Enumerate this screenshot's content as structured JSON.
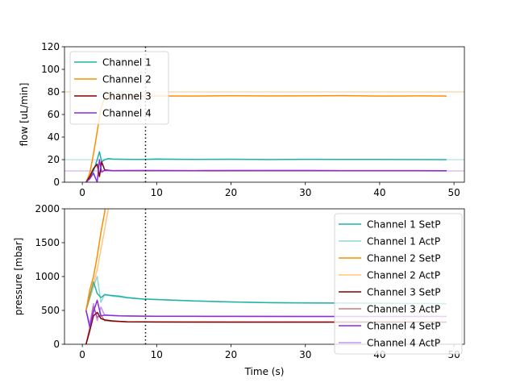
{
  "chart_data": [
    {
      "type": "line",
      "ylabel": "flow [uL/min]",
      "xlim": [
        -2.4,
        51.4
      ],
      "ylim": [
        0,
        120
      ],
      "xticks": [
        0,
        10,
        20,
        30,
        40,
        50
      ],
      "yticks": [
        0,
        20,
        40,
        60,
        80,
        100,
        120
      ],
      "legend_loc": "top-left",
      "marker_x": 8.5,
      "reference_lines": [
        {
          "y": 80,
          "color": "#f5c890"
        },
        {
          "y": 20,
          "color": "#a6dcd8"
        },
        {
          "y": 10,
          "color": "#c9a2e0"
        }
      ],
      "series": [
        {
          "name": "Channel 1",
          "color": "#20b2aa",
          "x": [
            0.5,
            1.0,
            1.5,
            2.0,
            2.3,
            2.6,
            3.0,
            3.5,
            4,
            6,
            8,
            10,
            15,
            20,
            25,
            30,
            35,
            40,
            45,
            49
          ],
          "y": [
            0,
            4,
            10,
            20,
            27,
            18,
            20,
            21,
            20.5,
            20.3,
            20.2,
            20.5,
            20.2,
            20.4,
            20.1,
            20.3,
            20.2,
            20.2,
            20.1,
            20
          ]
        },
        {
          "name": "Channel 2",
          "color": "#ff8c00",
          "x": [
            0.5,
            1.0,
            1.5,
            2.0,
            2.5,
            3.0,
            3.5,
            4,
            6,
            8,
            10,
            15,
            20,
            25,
            30,
            35,
            40,
            45,
            49
          ],
          "y": [
            0,
            8,
            25,
            45,
            65,
            75,
            77,
            76,
            76,
            76.2,
            76.4,
            76.3,
            76.6,
            76.4,
            76.5,
            76.7,
            76.3,
            76.5,
            76.3
          ]
        },
        {
          "name": "Channel 3",
          "color": "#800000",
          "x": [
            0.5,
            1.0,
            1.5,
            2.0,
            2.3,
            2.6,
            3.0,
            4,
            8,
            15,
            25,
            35,
            45,
            49
          ],
          "y": [
            0,
            5,
            12,
            16,
            5,
            18,
            11,
            10.2,
            10.3,
            10.2,
            10.3,
            10.2,
            10.2,
            10.1
          ]
        },
        {
          "name": "Channel 4",
          "color": "#8a2be2",
          "x": [
            0.5,
            1.0,
            1.5,
            2.0,
            2.3,
            2.6,
            3.0,
            4,
            8,
            15,
            25,
            35,
            45,
            49
          ],
          "y": [
            0,
            3,
            8,
            0,
            20,
            9,
            10.5,
            10.3,
            10.4,
            10.3,
            10.4,
            10.3,
            10.3,
            10.2
          ]
        }
      ]
    },
    {
      "type": "line",
      "xlabel": "Time (s)",
      "ylabel": "pressure [mbar]",
      "xlim": [
        -2.4,
        51.4
      ],
      "ylim": [
        0,
        2000
      ],
      "xticks": [
        0,
        10,
        20,
        30,
        40,
        50
      ],
      "yticks": [
        0,
        500,
        1000,
        1500,
        2000
      ],
      "legend_loc": "top-right",
      "marker_x": 8.5,
      "series": [
        {
          "name": "Channel 1 SetP",
          "color": "#20b2aa",
          "alpha": 1,
          "x": [
            0.5,
            1.5,
            2.0,
            2.5,
            3.0,
            4,
            5,
            6,
            8,
            10,
            15,
            20,
            25,
            30,
            35,
            40,
            45,
            49
          ],
          "y": [
            500,
            920,
            750,
            690,
            730,
            720,
            710,
            690,
            670,
            660,
            640,
            625,
            615,
            610,
            608,
            605,
            603,
            600
          ]
        },
        {
          "name": "Channel 1 ActP",
          "color": "#20b2aa",
          "alpha": 0.5,
          "x": [
            0.5,
            1.5,
            2.0,
            2.5,
            3.0,
            4,
            5,
            6,
            8,
            10,
            15,
            20,
            25,
            30,
            35,
            40,
            45,
            49
          ],
          "y": [
            500,
            850,
            1000,
            620,
            740,
            710,
            700,
            685,
            668,
            660,
            640,
            625,
            615,
            610,
            608,
            605,
            603,
            600
          ]
        },
        {
          "name": "Channel 2 SetP",
          "color": "#ff8c00",
          "alpha": 1,
          "x": [
            0.5,
            1.0,
            1.5,
            2.0,
            2.5,
            3.0,
            3.6
          ],
          "y": [
            500,
            800,
            1000,
            1300,
            1650,
            1950,
            2400
          ]
        },
        {
          "name": "Channel 2 ActP",
          "color": "#ff8c00",
          "alpha": 0.5,
          "x": [
            0.5,
            1.0,
            1.5,
            2.0,
            2.5,
            3.0,
            3.5,
            4.0
          ],
          "y": [
            500,
            700,
            900,
            1100,
            1400,
            1700,
            2000,
            2300
          ]
        },
        {
          "name": "Channel 3 SetP",
          "color": "#800000",
          "alpha": 1,
          "x": [
            0.5,
            1.0,
            1.5,
            2.0,
            2.5,
            3.0,
            4,
            5,
            6,
            8,
            10,
            15,
            20,
            30,
            40,
            49
          ],
          "y": [
            0,
            200,
            420,
            470,
            380,
            360,
            345,
            338,
            332,
            330,
            329,
            328,
            328,
            327,
            327,
            327
          ]
        },
        {
          "name": "Channel 3 ActP",
          "color": "#800000",
          "alpha": 0.5,
          "x": [
            0.5,
            1.0,
            1.5,
            2.0,
            2.5,
            3.0,
            4,
            6,
            10,
            20,
            30,
            40,
            49
          ],
          "y": [
            0,
            250,
            550,
            400,
            430,
            350,
            340,
            332,
            329,
            328,
            327,
            327,
            327
          ]
        },
        {
          "name": "Channel 4 SetP",
          "color": "#8a2be2",
          "alpha": 1,
          "x": [
            0.5,
            1.0,
            1.5,
            2.0,
            2.5,
            3.0,
            4,
            5,
            6,
            8,
            10,
            15,
            20,
            30,
            40,
            49
          ],
          "y": [
            500,
            250,
            480,
            650,
            420,
            430,
            425,
            420,
            418,
            415,
            414,
            413,
            412,
            411,
            411,
            410
          ]
        },
        {
          "name": "Channel 4 ActP",
          "color": "#8a2be2",
          "alpha": 0.5,
          "x": [
            0.5,
            1.0,
            1.5,
            2.0,
            2.5,
            3.0,
            4,
            6,
            10,
            20,
            30,
            40,
            49
          ],
          "y": [
            500,
            300,
            600,
            350,
            550,
            430,
            422,
            417,
            414,
            412,
            411,
            411,
            410
          ]
        }
      ]
    }
  ]
}
